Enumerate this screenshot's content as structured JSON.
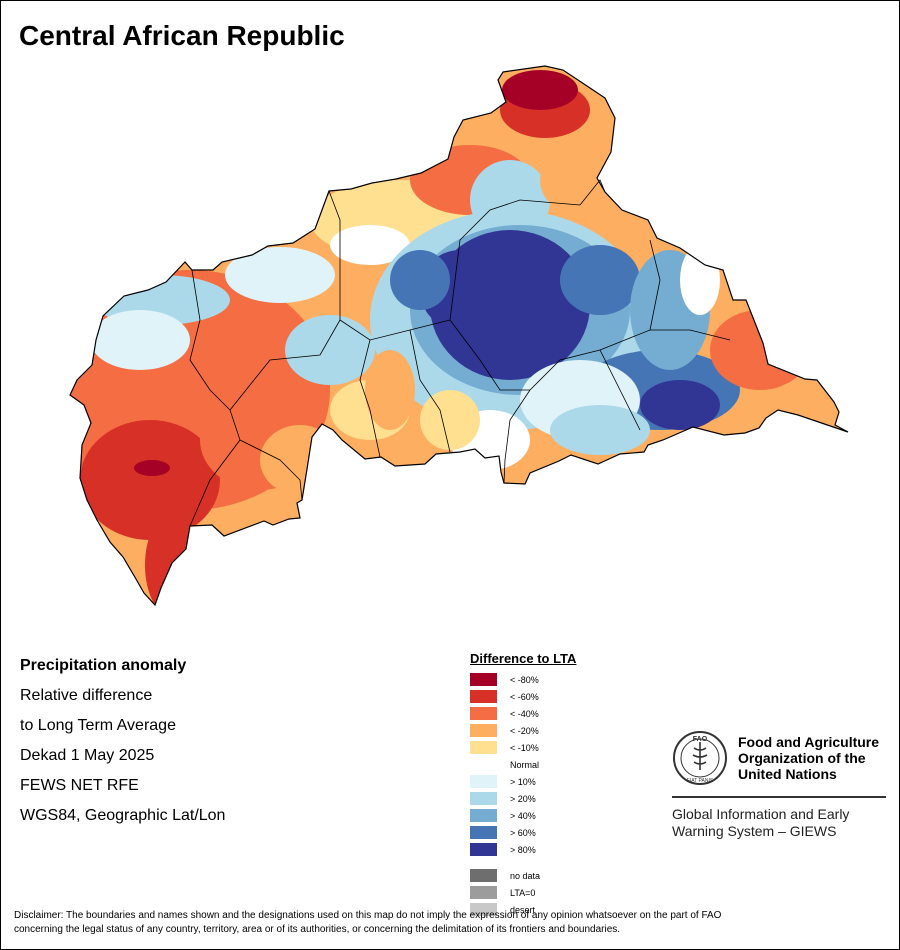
{
  "title": "Central African Republic",
  "info": {
    "heading": "Precipitation anomaly",
    "line1": "Relative difference",
    "line2": "to Long Term Average",
    "line3": "Dekad 1 May 2025",
    "line4": "FEWS NET RFE",
    "line5": "WGS84, Geographic Lat/Lon"
  },
  "legend": {
    "title": "Difference to LTA",
    "classes": [
      {
        "label": "< -80%",
        "color": "#a50026"
      },
      {
        "label": "< -60%",
        "color": "#d73027"
      },
      {
        "label": "< -40%",
        "color": "#f46d43"
      },
      {
        "label": "< -20%",
        "color": "#fdae61"
      },
      {
        "label": "< -10%",
        "color": "#fee090"
      },
      {
        "label": "Normal",
        "color": "#ffffff"
      },
      {
        "label": "> 10%",
        "color": "#e0f3f8"
      },
      {
        "label": "> 20%",
        "color": "#abd9e9"
      },
      {
        "label": "> 40%",
        "color": "#74add1"
      },
      {
        "label": "> 60%",
        "color": "#4575b4"
      },
      {
        "label": "> 80%",
        "color": "#313695"
      }
    ],
    "special": [
      {
        "label": "no data",
        "color": "#6e6e6e"
      },
      {
        "label": "LTA=0",
        "color": "#9c9c9c"
      },
      {
        "label": "desert",
        "color": "#c8c8c8"
      }
    ]
  },
  "org": {
    "name_line1": "Food and Agriculture",
    "name_line2": "Organization of the",
    "name_line3": "United Nations",
    "logo_text": "FAO",
    "motto": "FIAT PANIS",
    "system_line1": "Global Information and Early",
    "system_line2": "Warning System – GIEWS"
  },
  "disclaimer": {
    "line1": "Disclaimer: The boundaries and names shown and the designations used on this map do not imply the expression of any opinion whatsoever on the part of FAO",
    "line2": "concerning the legal status of any country, territory, area or of its authorities, or concerning the delimitation of its frontiers and boundaries."
  }
}
